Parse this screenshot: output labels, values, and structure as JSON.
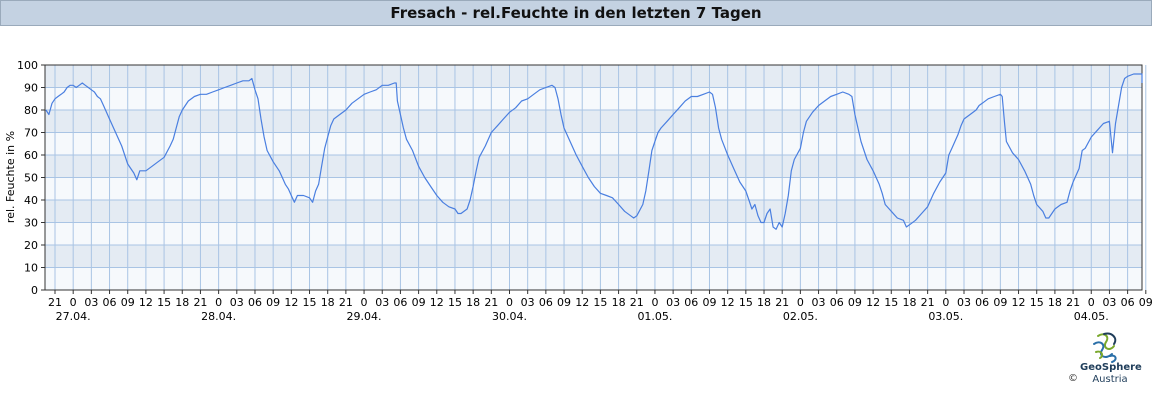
{
  "title": "Fresach - rel.Feuchte in den letzten 7 Tagen",
  "logo": {
    "name": "GeoSphere",
    "sub": "Austria",
    "copyright": "©"
  },
  "chart_data": {
    "type": "line",
    "title": "Fresach - rel.Feuchte in den letzten 7 Tagen",
    "ylabel": "rel. Feuchte in %",
    "xlabel": "",
    "ylim": [
      0,
      100
    ],
    "yticks": [
      0,
      10,
      20,
      30,
      40,
      50,
      60,
      70,
      80,
      90,
      100
    ],
    "grid": true,
    "series_color": "#4a7fe0",
    "hour_ticks": [
      "21",
      "0",
      "03",
      "06",
      "09",
      "12",
      "15",
      "18",
      "21",
      "0",
      "03",
      "06",
      "09",
      "12",
      "15",
      "18",
      "21",
      "0",
      "03",
      "06",
      "09",
      "12",
      "15",
      "18",
      "21",
      "0",
      "03",
      "06",
      "09",
      "12",
      "15",
      "18",
      "21",
      "0",
      "03",
      "06",
      "09",
      "12",
      "15",
      "18",
      "21",
      "0",
      "03",
      "06",
      "09",
      "12",
      "15",
      "18",
      "21",
      "0",
      "03",
      "06",
      "09",
      "12",
      "15",
      "18",
      "21",
      "0",
      "03",
      "06",
      "09"
    ],
    "date_labels": [
      "27.04.",
      "28.04.",
      "29.04.",
      "30.04.",
      "01.05.",
      "02.05.",
      "03.05.",
      "04.05."
    ],
    "x_hours_from": "26.04. 21:00",
    "series": [
      {
        "points": [
          [
            -1.5,
            80
          ],
          [
            -1,
            78
          ],
          [
            -0.5,
            83
          ],
          [
            0,
            85
          ],
          [
            0.5,
            86
          ],
          [
            1,
            87
          ],
          [
            1.5,
            88
          ],
          [
            2,
            90
          ],
          [
            2.5,
            91
          ],
          [
            3,
            91
          ],
          [
            3.5,
            90
          ],
          [
            4,
            91
          ],
          [
            4.5,
            92
          ],
          [
            5,
            91
          ],
          [
            5.5,
            90
          ],
          [
            6,
            89
          ],
          [
            6.5,
            88
          ],
          [
            7,
            86
          ],
          [
            7.5,
            85
          ],
          [
            8,
            82
          ],
          [
            9,
            76
          ],
          [
            10,
            70
          ],
          [
            11,
            64
          ],
          [
            12,
            56
          ],
          [
            13,
            52
          ],
          [
            13.5,
            49
          ],
          [
            14,
            53
          ],
          [
            15,
            53
          ],
          [
            16,
            55
          ],
          [
            17,
            57
          ],
          [
            18,
            59
          ],
          [
            19,
            64
          ],
          [
            19.5,
            67
          ],
          [
            20,
            72
          ],
          [
            20.5,
            77
          ],
          [
            21,
            80
          ],
          [
            22,
            84
          ],
          [
            23,
            86
          ],
          [
            24,
            87
          ],
          [
            25,
            87
          ],
          [
            26,
            88
          ],
          [
            27,
            89
          ],
          [
            28,
            90
          ],
          [
            29,
            91
          ],
          [
            30,
            92
          ],
          [
            31,
            93
          ],
          [
            32,
            93
          ],
          [
            32.5,
            94
          ],
          [
            33,
            89
          ],
          [
            33.5,
            85
          ],
          [
            34,
            76
          ],
          [
            34.5,
            68
          ],
          [
            35,
            62
          ],
          [
            36,
            57
          ],
          [
            37,
            53
          ],
          [
            37.5,
            50
          ],
          [
            38,
            47
          ],
          [
            38.5,
            45
          ],
          [
            39,
            42
          ],
          [
            39.5,
            39
          ],
          [
            40,
            42
          ],
          [
            41,
            42
          ],
          [
            42,
            41
          ],
          [
            42.5,
            39
          ],
          [
            43,
            44
          ],
          [
            43.5,
            47
          ],
          [
            44,
            55
          ],
          [
            44.5,
            63
          ],
          [
            45,
            68
          ],
          [
            45.5,
            73
          ],
          [
            46,
            76
          ],
          [
            47,
            78
          ],
          [
            48,
            80
          ],
          [
            49,
            83
          ],
          [
            50,
            85
          ],
          [
            51,
            87
          ],
          [
            52,
            88
          ],
          [
            53,
            89
          ],
          [
            54,
            91
          ],
          [
            55,
            91
          ],
          [
            56,
            92
          ],
          [
            56.3,
            92
          ],
          [
            56.5,
            84
          ],
          [
            57,
            78
          ],
          [
            57.5,
            72
          ],
          [
            58,
            67
          ],
          [
            59,
            62
          ],
          [
            60,
            55
          ],
          [
            61,
            50
          ],
          [
            62,
            46
          ],
          [
            63,
            42
          ],
          [
            64,
            39
          ],
          [
            65,
            37
          ],
          [
            66,
            36
          ],
          [
            66.5,
            34
          ],
          [
            67,
            34
          ],
          [
            68,
            36
          ],
          [
            68.5,
            40
          ],
          [
            69,
            46
          ],
          [
            69.5,
            53
          ],
          [
            70,
            59
          ],
          [
            71,
            64
          ],
          [
            72,
            70
          ],
          [
            73,
            73
          ],
          [
            74,
            76
          ],
          [
            75,
            79
          ],
          [
            76,
            81
          ],
          [
            77,
            84
          ],
          [
            78,
            85
          ],
          [
            79,
            87
          ],
          [
            80,
            89
          ],
          [
            81,
            90
          ],
          [
            82,
            91
          ],
          [
            82.5,
            90
          ],
          [
            83,
            85
          ],
          [
            83.5,
            78
          ],
          [
            84,
            72
          ],
          [
            85,
            66
          ],
          [
            86,
            60
          ],
          [
            87,
            55
          ],
          [
            88,
            50
          ],
          [
            89,
            46
          ],
          [
            90,
            43
          ],
          [
            91,
            42
          ],
          [
            92,
            41
          ],
          [
            93,
            38
          ],
          [
            94,
            35
          ],
          [
            95,
            33
          ],
          [
            95.5,
            32
          ],
          [
            96,
            33
          ],
          [
            97,
            38
          ],
          [
            97.5,
            44
          ],
          [
            98,
            53
          ],
          [
            98.5,
            62
          ],
          [
            99,
            66
          ],
          [
            99.5,
            70
          ],
          [
            100,
            72
          ],
          [
            101,
            75
          ],
          [
            102,
            78
          ],
          [
            103,
            81
          ],
          [
            104,
            84
          ],
          [
            105,
            86
          ],
          [
            106,
            86
          ],
          [
            107,
            87
          ],
          [
            108,
            88
          ],
          [
            108.5,
            87
          ],
          [
            109,
            81
          ],
          [
            109.5,
            72
          ],
          [
            110,
            67
          ],
          [
            111,
            60
          ],
          [
            112,
            54
          ],
          [
            113,
            48
          ],
          [
            114,
            44
          ],
          [
            114.5,
            40
          ],
          [
            115,
            36
          ],
          [
            115.5,
            38
          ],
          [
            116,
            33
          ],
          [
            116.5,
            30
          ],
          [
            117,
            30
          ],
          [
            117.5,
            34
          ],
          [
            118,
            36
          ],
          [
            118.5,
            28
          ],
          [
            119,
            27
          ],
          [
            119.5,
            30
          ],
          [
            120,
            28
          ],
          [
            120.5,
            34
          ],
          [
            121,
            42
          ],
          [
            121.5,
            53
          ],
          [
            122,
            58
          ],
          [
            123,
            63
          ],
          [
            123.5,
            70
          ],
          [
            124,
            75
          ],
          [
            125,
            79
          ],
          [
            126,
            82
          ],
          [
            127,
            84
          ],
          [
            128,
            86
          ],
          [
            129,
            87
          ],
          [
            130,
            88
          ],
          [
            131,
            87
          ],
          [
            131.5,
            86
          ],
          [
            132,
            78
          ],
          [
            133,
            66
          ],
          [
            134,
            58
          ],
          [
            135,
            53
          ],
          [
            136,
            47
          ],
          [
            136.5,
            43
          ],
          [
            137,
            38
          ],
          [
            138,
            35
          ],
          [
            139,
            32
          ],
          [
            140,
            31
          ],
          [
            140.5,
            28
          ],
          [
            141,
            29
          ],
          [
            142,
            31
          ],
          [
            143,
            34
          ],
          [
            144,
            37
          ],
          [
            145,
            43
          ],
          [
            146,
            48
          ],
          [
            147,
            52
          ],
          [
            147.5,
            60
          ],
          [
            148,
            63
          ],
          [
            149,
            69
          ],
          [
            149.5,
            73
          ],
          [
            150,
            76
          ],
          [
            151,
            78
          ],
          [
            152,
            80
          ],
          [
            152.5,
            82
          ],
          [
            153,
            83
          ],
          [
            154,
            85
          ],
          [
            155,
            86
          ],
          [
            156,
            87
          ],
          [
            156.3,
            86
          ],
          [
            156.7,
            74
          ],
          [
            157,
            66
          ],
          [
            158,
            61
          ],
          [
            159,
            58
          ],
          [
            160,
            53
          ],
          [
            161,
            47
          ],
          [
            161.5,
            42
          ],
          [
            162,
            38
          ],
          [
            163,
            35
          ],
          [
            163.5,
            32
          ],
          [
            164,
            32
          ],
          [
            165,
            36
          ],
          [
            166,
            38
          ],
          [
            167,
            39
          ],
          [
            167.5,
            44
          ],
          [
            168,
            48
          ],
          [
            169,
            54
          ],
          [
            169.5,
            62
          ],
          [
            170,
            63
          ],
          [
            171,
            68
          ],
          [
            172,
            71
          ],
          [
            173,
            74
          ],
          [
            174,
            75
          ],
          [
            174.5,
            61
          ],
          [
            175,
            74
          ],
          [
            176,
            90
          ],
          [
            176.5,
            94
          ],
          [
            177,
            95
          ],
          [
            178,
            96
          ],
          [
            179,
            96
          ],
          [
            180,
            96
          ],
          [
            181,
            96
          ],
          [
            181.5,
            92
          ]
        ]
      }
    ]
  }
}
